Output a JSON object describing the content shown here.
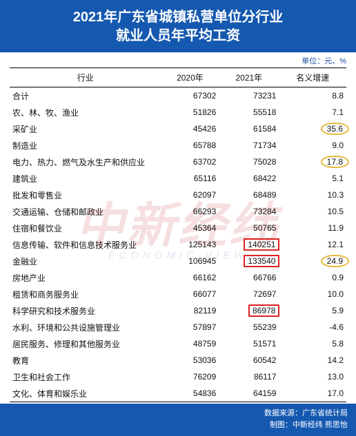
{
  "colors": {
    "header_bg": "#1558b0",
    "header_text": "#ffffff",
    "highlight_red": "#e02020",
    "highlight_gold": "#e6b93a"
  },
  "header": {
    "title_line1": "2021年广东省城镇私营单位分行业",
    "title_line2": "就业人员年平均工资",
    "fontsize": 20
  },
  "unit_label": "单位：元、%",
  "table": {
    "columns": [
      "行业",
      "2020年",
      "2021年",
      "名义增速"
    ],
    "col_widths_pct": [
      45,
      17,
      17,
      21
    ],
    "rows": [
      {
        "industry": "合计",
        "y2020": "67302",
        "y2021": "73231",
        "growth": "8.8"
      },
      {
        "industry": "农、林、牧、渔业",
        "y2020": "51826",
        "y2021": "55518",
        "growth": "7.1"
      },
      {
        "industry": "采矿业",
        "y2020": "45426",
        "y2021": "61584",
        "growth": "35.6",
        "growth_hl": "gold"
      },
      {
        "industry": "制造业",
        "y2020": "65788",
        "y2021": "71734",
        "growth": "9.0"
      },
      {
        "industry": "电力、热力、燃气及水生产和供应业",
        "y2020": "63702",
        "y2021": "75028",
        "growth": "17.8",
        "growth_hl": "gold"
      },
      {
        "industry": "建筑业",
        "y2020": "65116",
        "y2021": "68422",
        "growth": "5.1"
      },
      {
        "industry": "批发和零售业",
        "y2020": "62097",
        "y2021": "68489",
        "growth": "10.3"
      },
      {
        "industry": "交通运输、仓储和邮政业",
        "y2020": "66293",
        "y2021": "73284",
        "growth": "10.5"
      },
      {
        "industry": "住宿和餐饮业",
        "y2020": "45364",
        "y2021": "50765",
        "growth": "11.9"
      },
      {
        "industry": "信息传输、软件和信息技术服务业",
        "y2020": "125143",
        "y2021": "140251",
        "y2021_hl": "red",
        "growth": "12.1"
      },
      {
        "industry": "金融业",
        "y2020": "106945",
        "y2021": "133540",
        "y2021_hl": "red",
        "growth": "24.9",
        "growth_hl": "gold"
      },
      {
        "industry": "房地产业",
        "y2020": "66162",
        "y2021": "66766",
        "growth": "0.9"
      },
      {
        "industry": "租赁和商务服务业",
        "y2020": "66077",
        "y2021": "72697",
        "growth": "10.0"
      },
      {
        "industry": "科学研究和技术服务业",
        "y2020": "82119",
        "y2021": "86978",
        "y2021_hl": "red",
        "growth": "5.9"
      },
      {
        "industry": "水利、环境和公共设施管理业",
        "y2020": "57897",
        "y2021": "55239",
        "growth": "-4.6"
      },
      {
        "industry": "居民服务、修理和其他服务业",
        "y2020": "48759",
        "y2021": "51571",
        "growth": "5.8"
      },
      {
        "industry": "教育",
        "y2020": "53036",
        "y2021": "60542",
        "growth": "14.2"
      },
      {
        "industry": "卫生和社会工作",
        "y2020": "76209",
        "y2021": "86117",
        "growth": "13.0"
      },
      {
        "industry": "文化、体育和娱乐业",
        "y2020": "54836",
        "y2021": "64159",
        "growth": "17.0"
      }
    ]
  },
  "watermark": {
    "main": "中新经纬",
    "sub": "ECONOMIC VIEW"
  },
  "footer": {
    "source_label": "数据来源：",
    "source_value": "广东省统计局",
    "credit_label": "制图：",
    "credit_value": "中新经纬 熊思怡"
  }
}
